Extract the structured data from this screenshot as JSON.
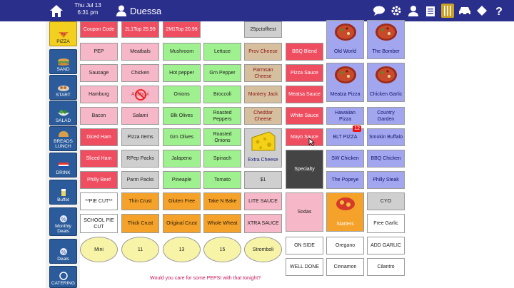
{
  "header": {
    "date": "Thu Jul 13",
    "time": "6:31 pm",
    "user_name": "Duessa"
  },
  "sidebar": {
    "items": [
      {
        "label": "PIZZA",
        "icon": "pizza-icon",
        "active": true
      },
      {
        "label": "SAND",
        "icon": "sandwich-icon"
      },
      {
        "label": "START",
        "icon": "starter-icon"
      },
      {
        "label": "SALAD",
        "icon": "salad-icon"
      },
      {
        "label": "BREADS LUNCH",
        "icon": "bread-icon"
      },
      {
        "label": "DRINK",
        "icon": "drink-icon"
      },
      {
        "label": "Buffet",
        "icon": "buffet-icon"
      },
      {
        "label": "Monthly Deals",
        "icon": "deals-icon"
      },
      {
        "label": "Deals",
        "icon": "deals-icon"
      },
      {
        "label": "CATERING",
        "icon": "catering-icon"
      }
    ]
  },
  "coupons": {
    "coupon_code": "Coupon Code",
    "c1": "2L1Top 25.99",
    "c2": "2M1Top 20.99",
    "c3": "25pctofftest"
  },
  "meats": [
    "PEP",
    "Sausage",
    "Hamburg",
    "Bacon",
    "Diced Ham",
    "Sliced Ham",
    "Philly Beef"
  ],
  "meats2": [
    "Meatbals",
    "Chicken",
    "Anchovi",
    "Salami",
    "Pizza Items",
    "RPep Packs",
    "Parm Packs"
  ],
  "veggies": [
    "Mushroom",
    "Hot pepper",
    "Onions",
    "Blk Olives",
    "Grn Olives",
    "Jalapeno",
    "Pineaple"
  ],
  "veggies2": [
    "Lettuce",
    "Grn Pepper",
    "Broccoli",
    "Roasted Peppers",
    "Roasted Onions",
    "Spinach",
    "Tomato"
  ],
  "cheeses": [
    "Prov Cheese",
    "Parmsan Cheese",
    "Montery Jack",
    "Cheddar Cheese",
    "Extra Cheese"
  ],
  "price_btn": "$1",
  "sauces": [
    "BBQ Blend",
    "Pizza Sauce",
    "Meatsa Sauce",
    "White Sauce",
    "Mayo Sauce"
  ],
  "specialty": "Specialty",
  "sodas": "Sodas",
  "starters": "Starters",
  "specials": {
    "old_world": "Old World",
    "the_bomber": "The Bomber",
    "meatza_pizza": "Meatza Pizza",
    "chicken_garlic": "Chicken Garlic",
    "hawaiian_pizza": "Hawaiian Pizza",
    "country_garden": "Country Garden",
    "blt_pizza": "BLT PIZZA",
    "blt_badge": "12",
    "smokin_buffalo": "Smokin Buffalo",
    "sw_chicken": "SW Chicken",
    "bbq_chicken": "BBQ Chicken",
    "the_popeye": "The Popeye",
    "philly_steak": "Philly Steak",
    "cyo": "CYO",
    "free_garlic": "Free Garlic",
    "add_garlic": "ADD GARLIC",
    "cilantro": "Cilantro",
    "oregano": "Oregano",
    "cinnamon": "Cinnamon",
    "on_side": "ON SIDE",
    "well_done": "WELL DONE"
  },
  "crusts": {
    "pie_cut": "**PIE CUT**",
    "school_pie_cut": "SCHOOL PIE CUT",
    "thin_crust": "Thin Crust",
    "thick_crust": "Thick Crust",
    "gluten_free": "Gluten Free",
    "original_crust": "Original Crust",
    "take_n_bake": "Take N Bake",
    "whole_wheat": "Whole Wheat",
    "lite_sauce": "LITE SAUCE",
    "xtra_sauce": "XTRA SAUCE"
  },
  "sizes": [
    "Mini",
    "11",
    "13",
    "15",
    "Stromboli"
  ],
  "footer_message": "Would you care for some PEPSI with that tonight?",
  "colors": {
    "topbar": "#2b2f8c",
    "pink": "#f6b7c8",
    "green": "#9ff08e",
    "tan": "#d6bf9e",
    "red": "#ef4d60",
    "blue": "#a2a6ee",
    "orange": "#f4a22a"
  }
}
